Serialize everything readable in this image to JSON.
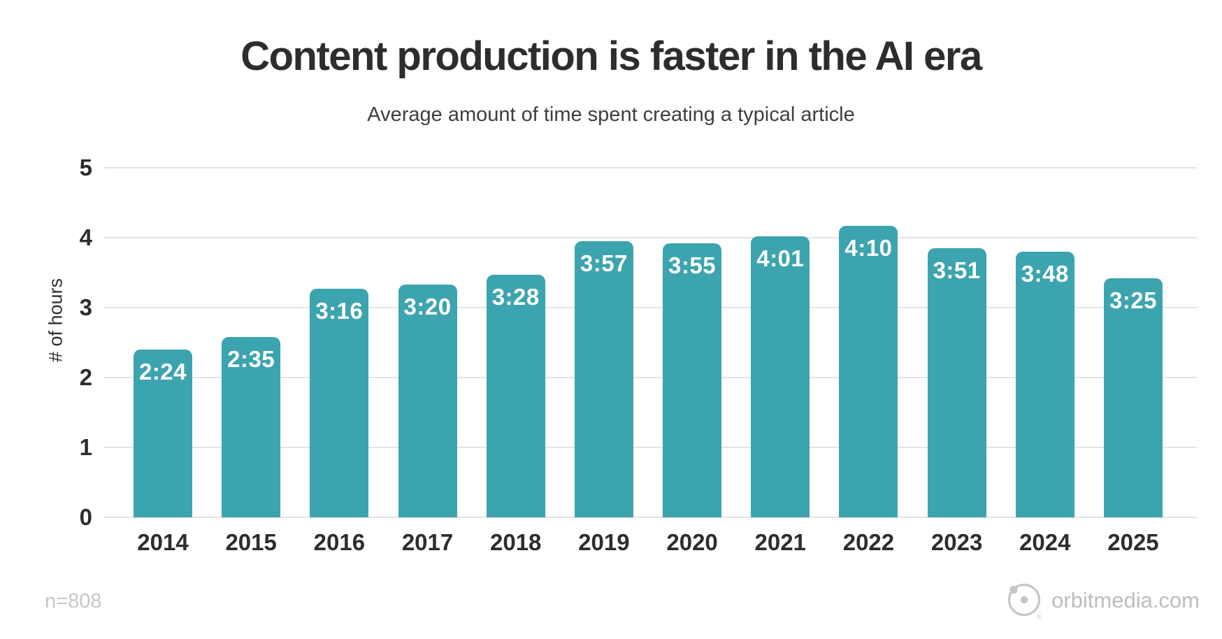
{
  "chart_data": {
    "type": "bar",
    "title": "Content production is faster in the AI era",
    "subtitle": "Average amount of time spent creating a typical article",
    "categories": [
      "2014",
      "2015",
      "2016",
      "2017",
      "2018",
      "2019",
      "2020",
      "2021",
      "2022",
      "2023",
      "2024",
      "2025"
    ],
    "values": [
      "2:24",
      "2:35",
      "3:16",
      "3:20",
      "3:28",
      "3:57",
      "3:55",
      "4:01",
      "4:10",
      "3:51",
      "3:48",
      "3:25"
    ],
    "values_hours": [
      2.4,
      2.583,
      3.267,
      3.333,
      3.467,
      3.95,
      3.917,
      4.017,
      4.167,
      3.85,
      3.8,
      3.417
    ],
    "xlabel": "",
    "ylabel": "# of hours",
    "ylim": [
      0,
      5
    ],
    "yticks": [
      0,
      1,
      2,
      3,
      4,
      5
    ],
    "grid": true,
    "legend": "none",
    "bar_color": "#3CA4AF",
    "bar_label_color": "#ffffff"
  },
  "footer": {
    "sample_size": "n=808",
    "source": "orbitmedia.com",
    "logo_icon": "orbit-logo-icon",
    "logo_color": "#c6c6c6"
  },
  "colors": {
    "background": "#ffffff",
    "title": "#2b2d2e",
    "subtitle": "#3d3f40",
    "axis_text": "#2b2d2e",
    "gridline": "#e4e4e4"
  }
}
